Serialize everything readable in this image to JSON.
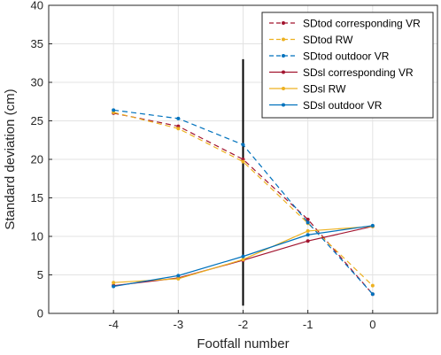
{
  "chart_data": {
    "type": "line",
    "title": "",
    "xlabel": "Footfall number",
    "ylabel": "Standard deviation (cm)",
    "x": [
      -4,
      -3,
      -2,
      -1,
      0
    ],
    "xlim": [
      -5,
      1
    ],
    "ylim": [
      0,
      40
    ],
    "xticks": [
      -4,
      -3,
      -2,
      -1,
      0
    ],
    "yticks": [
      0,
      5,
      10,
      15,
      20,
      25,
      30,
      35,
      40
    ],
    "grid": true,
    "legend_position": "top-right",
    "vertical_marker": {
      "x": -2,
      "y_range": [
        1,
        33
      ],
      "color": "#000000"
    },
    "series": [
      {
        "name": "SDtod corresponding VR",
        "values": [
          26.0,
          24.3,
          20.0,
          12.2,
          2.5
        ],
        "color": "#a2142f",
        "style": "dashed"
      },
      {
        "name": "SDtod RW",
        "values": [
          26.1,
          24.0,
          19.7,
          11.7,
          3.6
        ],
        "color": "#edb120",
        "style": "dashed"
      },
      {
        "name": "SDtod outdoor VR",
        "values": [
          26.4,
          25.3,
          21.9,
          11.8,
          2.5
        ],
        "color": "#0072bd",
        "style": "dashed"
      },
      {
        "name": "SDsl corresponding VR",
        "values": [
          3.6,
          4.6,
          6.9,
          9.4,
          11.3
        ],
        "color": "#a2142f",
        "style": "solid"
      },
      {
        "name": "SDsl RW",
        "values": [
          4.0,
          4.5,
          7.0,
          10.7,
          11.3
        ],
        "color": "#edb120",
        "style": "solid"
      },
      {
        "name": "SDsl outdoor VR",
        "values": [
          3.5,
          4.9,
          7.4,
          10.2,
          11.4
        ],
        "color": "#0072bd",
        "style": "solid"
      }
    ]
  }
}
